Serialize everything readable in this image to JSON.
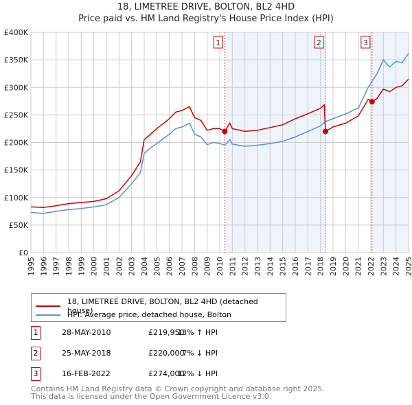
{
  "title": "18, LIMETREE DRIVE, BOLTON, BL2 4HD",
  "subtitle": "Price paid vs. HM Land Registry's House Price Index (HPI)",
  "chart_data": {
    "type": "line",
    "xlim": [
      1995,
      2025
    ],
    "ylim": [
      0,
      400000
    ],
    "yticks": [
      0,
      50000,
      100000,
      150000,
      200000,
      250000,
      300000,
      350000,
      400000
    ],
    "ytick_labels": [
      "£0",
      "£50K",
      "£100K",
      "£150K",
      "£200K",
      "£250K",
      "£300K",
      "£350K",
      "£400K"
    ],
    "xticks": [
      1995,
      1996,
      1997,
      1998,
      1999,
      2000,
      2001,
      2002,
      2003,
      2004,
      2005,
      2006,
      2007,
      2008,
      2009,
      2010,
      2011,
      2012,
      2013,
      2014,
      2015,
      2016,
      2017,
      2018,
      2019,
      2020,
      2021,
      2022,
      2023,
      2024,
      2025
    ],
    "grid": true,
    "shaded_ranges": [
      [
        2010.4,
        2018.4
      ],
      [
        2022.1,
        2025
      ]
    ],
    "series": [
      {
        "name": "18, LIMETREE DRIVE, BOLTON, BL2 4HD (detached house)",
        "color": "#cc0000",
        "x": [
          1995,
          1996,
          1997,
          1998,
          1999,
          2000,
          2001,
          2002,
          2003,
          2003.7,
          2004,
          2004.5,
          2005,
          2006,
          2006.5,
          2007,
          2007.6,
          2008,
          2008.5,
          2009,
          2009.5,
          2010,
          2010.4,
          2010.8,
          2011,
          2012,
          2013,
          2014,
          2015,
          2016,
          2017,
          2018,
          2018.3,
          2018.4,
          2019,
          2020,
          2021,
          2021.8,
          2022.1,
          2022.5,
          2023,
          2023.5,
          2024,
          2024.5,
          2025
        ],
        "y": [
          83000,
          82000,
          85000,
          89000,
          91000,
          93000,
          98000,
          112000,
          140000,
          165000,
          205000,
          215000,
          225000,
          243000,
          255000,
          258000,
          265000,
          245000,
          240000,
          222000,
          225000,
          225000,
          219950,
          235000,
          225000,
          220000,
          222000,
          227000,
          232000,
          243000,
          252000,
          262000,
          268000,
          220000,
          228000,
          235000,
          248000,
          278000,
          274000,
          280000,
          297000,
          292000,
          300000,
          303000,
          315000
        ]
      },
      {
        "name": "HPI: Average price, detached house, Bolton",
        "color": "#5b8fd4",
        "x": [
          1995,
          1996,
          1997,
          1998,
          1999,
          2000,
          2001,
          2002,
          2003,
          2003.7,
          2004,
          2004.5,
          2005,
          2006,
          2006.5,
          2007,
          2007.6,
          2008,
          2008.5,
          2009,
          2009.5,
          2010,
          2010.4,
          2010.8,
          2011,
          2012,
          2013,
          2014,
          2015,
          2016,
          2017,
          2018,
          2018.3,
          2018.4,
          2019,
          2020,
          2021,
          2021.8,
          2022.1,
          2022.5,
          2023,
          2023.5,
          2024,
          2024.5,
          2025
        ],
        "y": [
          73000,
          71000,
          75000,
          78000,
          80000,
          83000,
          87000,
          100000,
          125000,
          145000,
          180000,
          190000,
          198000,
          215000,
          225000,
          228000,
          235000,
          215000,
          210000,
          196000,
          200000,
          198000,
          195000,
          205000,
          197000,
          193000,
          195000,
          198000,
          202000,
          210000,
          220000,
          230000,
          236000,
          238000,
          243000,
          252000,
          262000,
          300000,
          311000,
          325000,
          350000,
          337000,
          347000,
          345000,
          362000
        ]
      }
    ],
    "sales": [
      {
        "label": "1",
        "x": 2010.4,
        "y": 219950
      },
      {
        "label": "2",
        "x": 2018.4,
        "y": 220000
      },
      {
        "label": "3",
        "x": 2022.1,
        "y": 274000
      }
    ]
  },
  "legend": {
    "red": "18, LIMETREE DRIVE, BOLTON, BL2 4HD (detached house)",
    "blue": "HPI: Average price, detached house, Bolton"
  },
  "transactions": [
    {
      "num": "1",
      "date": "28-MAY-2010",
      "price": "£219,950",
      "hpi": "13% ↑ HPI"
    },
    {
      "num": "2",
      "date": "25-MAY-2018",
      "price": "£220,000",
      "hpi": "7% ↓ HPI"
    },
    {
      "num": "3",
      "date": "16-FEB-2022",
      "price": "£274,000",
      "hpi": "12% ↓ HPI"
    }
  ],
  "footer": [
    "Contains HM Land Registry data © Crown copyright and database right 2025.",
    "This data is licensed under the Open Government Licence v3.0."
  ]
}
